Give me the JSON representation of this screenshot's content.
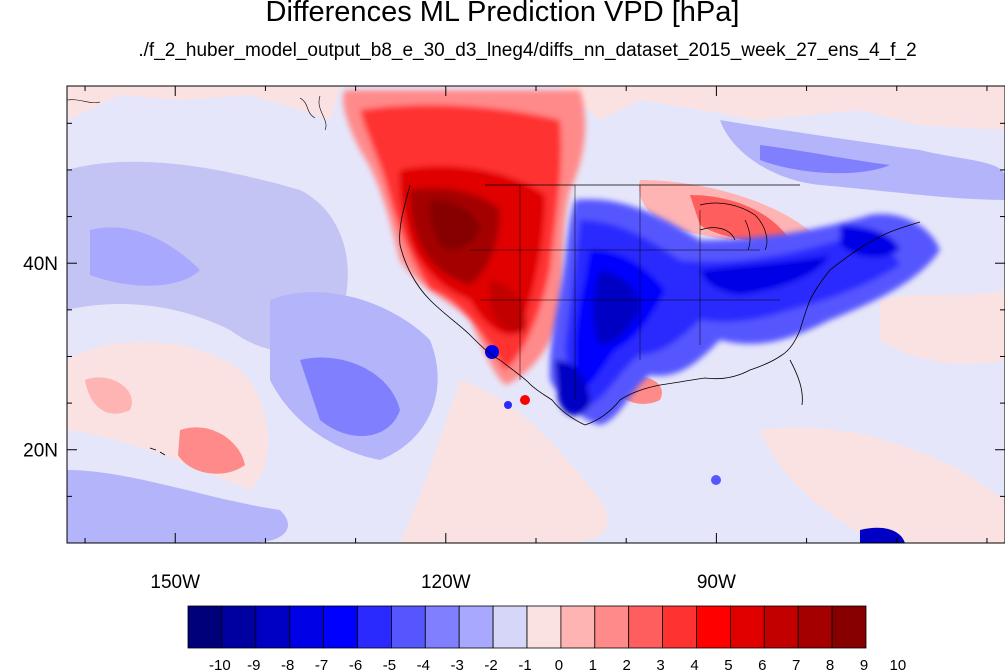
{
  "title": "Differences ML Prediction VPD [hPa]",
  "subtitle": "./f_2_huber_model_output_b8_e_30_d3_lneg4/diffs_nn_dataset_2015_week_27_ens_4_f_2",
  "map": {
    "lon_range": [
      -162,
      -58
    ],
    "lat_range": [
      10,
      59
    ],
    "lon_tick_labels": [
      {
        "value": -150,
        "text": "150W"
      },
      {
        "value": -120,
        "text": "120W"
      },
      {
        "value": -90,
        "text": "90W"
      }
    ],
    "lat_tick_labels": [
      {
        "value": 40,
        "text": "40N"
      },
      {
        "value": 20,
        "text": "20N"
      }
    ]
  },
  "colorbar": {
    "labels": [
      "-10",
      "-9",
      "-8",
      "-7",
      "-6",
      "-5",
      "-4",
      "-3",
      "-2",
      "-1",
      "0",
      "1",
      "2",
      "3",
      "4",
      "5",
      "6",
      "7",
      "8",
      "9",
      "10"
    ],
    "colors": [
      "#00007a",
      "#0000a0",
      "#0000c4",
      "#0000e6",
      "#0000ff",
      "#2a2aff",
      "#5656ff",
      "#8080ff",
      "#a8a8ff",
      "#d6d6f8",
      "#fbe2e2",
      "#ffb4b4",
      "#ff8a8a",
      "#ff5e5e",
      "#ff3232",
      "#ff0000",
      "#e00000",
      "#c20000",
      "#a40000",
      "#860000"
    ]
  }
}
